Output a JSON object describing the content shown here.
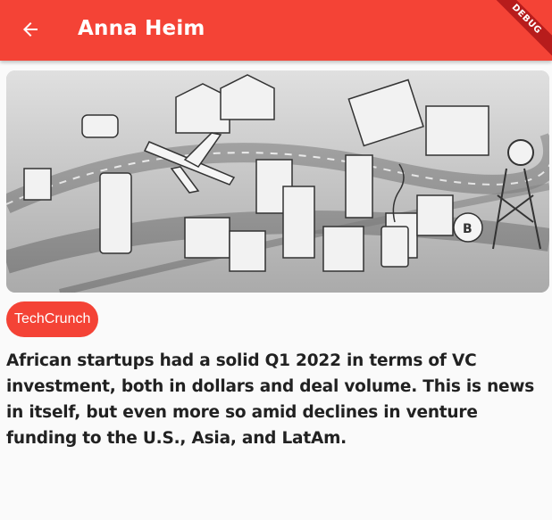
{
  "appbar": {
    "title": "Anna Heim",
    "back_icon": "arrow-left-icon",
    "background_color": "#f44336",
    "debug_label": "DEBUG"
  },
  "article": {
    "image_description": "isometric illustration of tech city",
    "source": "TechCrunch",
    "source_chip_color": "#f44336",
    "summary": "African startups had a solid Q1 2022 in terms of VC investment, both in dollars and deal volume. This is news in itself, but even more so amid declines in venture funding to the U.S., Asia, and LatAm."
  }
}
